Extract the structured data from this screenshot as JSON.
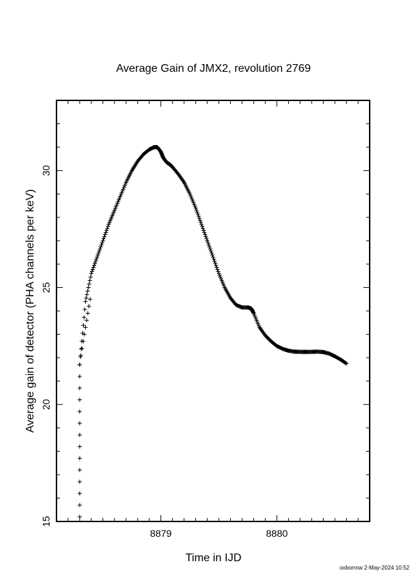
{
  "chart_data": {
    "type": "scatter",
    "title": "Average Gain of JMX2, revolution 2769",
    "xlabel": "Time in IJD",
    "ylabel": "Average gain of detector (PHA channels per keV)",
    "xlim": [
      8878.1,
      8880.8
    ],
    "ylim": [
      15,
      33
    ],
    "x_ticks": [
      8879,
      8880
    ],
    "y_ticks": [
      15,
      20,
      25,
      30
    ],
    "marker": "+",
    "grid": false,
    "series": [
      {
        "x": [
          8878.3,
          8878.35,
          8878.4,
          8878.45,
          8878.5,
          8878.55,
          8878.6,
          8878.65,
          8878.7,
          8878.75,
          8878.8,
          8878.85,
          8878.9,
          8878.94,
          8878.97,
          8879.0,
          8879.02,
          8879.05,
          8879.08,
          8879.1,
          8879.15,
          8879.2,
          8879.25,
          8879.3,
          8879.35,
          8879.4,
          8879.45,
          8879.5,
          8879.55,
          8879.6,
          8879.65,
          8879.7,
          8879.75,
          8879.78,
          8879.8,
          8879.85,
          8879.9,
          8879.95,
          8880.0,
          8880.05,
          8880.1,
          8880.15,
          8880.2,
          8880.25,
          8880.3,
          8880.35,
          8880.4,
          8880.45,
          8880.5,
          8880.55,
          8880.6
        ],
        "y": [
          21.7,
          24.4,
          25.6,
          26.3,
          27.0,
          27.7,
          28.3,
          28.9,
          29.5,
          30.0,
          30.4,
          30.7,
          30.9,
          31.0,
          31.0,
          30.8,
          30.55,
          30.35,
          30.25,
          30.15,
          29.85,
          29.5,
          29.0,
          28.4,
          27.7,
          27.0,
          26.3,
          25.6,
          25.0,
          24.55,
          24.25,
          24.15,
          24.15,
          24.1,
          23.9,
          23.3,
          22.95,
          22.7,
          22.5,
          22.38,
          22.3,
          22.26,
          22.25,
          22.25,
          22.25,
          22.26,
          22.24,
          22.18,
          22.06,
          21.92,
          21.75
        ]
      }
    ],
    "extra_points_x": [
      8878.3,
      8878.3,
      8878.3,
      8878.3,
      8878.3,
      8878.3,
      8878.3,
      8878.3,
      8878.3,
      8878.3,
      8878.3,
      8878.3,
      8878.3,
      8878.3
    ],
    "extra_points_y": [
      15.2,
      15.7,
      16.2,
      16.7,
      17.2,
      17.7,
      18.2,
      18.7,
      19.2,
      19.7,
      20.2,
      20.7,
      21.2,
      21.7
    ],
    "early_points_x": [
      8878.31,
      8878.32,
      8878.33,
      8878.34,
      8878.35,
      8878.36,
      8878.37,
      8878.38,
      8878.39
    ],
    "early_points_y": [
      22.1,
      22.4,
      22.7,
      23.0,
      23.3,
      23.6,
      23.9,
      24.2,
      24.5
    ]
  },
  "footer": "oxborrow  2-May-2024 10:52"
}
